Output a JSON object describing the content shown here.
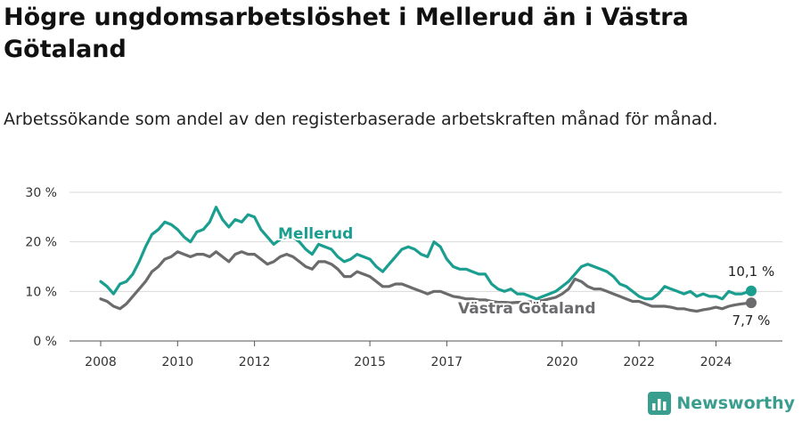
{
  "title": "Högre ungdomsarbetslöshet i Mellerud än i Västra Götaland",
  "subtitle": "Arbetssökande som andel av den registerbaserade arbetskraften månad för månad.",
  "brand": {
    "name": "Newsworthy",
    "color": "#3a9e8f"
  },
  "chart_data": {
    "type": "line",
    "x_range": [
      "2008-01",
      "2024-12"
    ],
    "ylim": [
      0,
      30
    ],
    "yticks": [
      "0 %",
      "10 %",
      "20 %",
      "30 %"
    ],
    "xticks": [
      "2008",
      "2010",
      "2012",
      "2015",
      "2017",
      "2020",
      "2022",
      "2024"
    ],
    "grid": true,
    "series": [
      {
        "name": "Mellerud",
        "color": "#1a9e8f",
        "end_label": "10,1 %",
        "points": [
          [
            "2008-01",
            12
          ],
          [
            "2008-03",
            11
          ],
          [
            "2008-05",
            9.5
          ],
          [
            "2008-07",
            11.5
          ],
          [
            "2008-09",
            12
          ],
          [
            "2008-11",
            13.5
          ],
          [
            "2009-01",
            16
          ],
          [
            "2009-03",
            19
          ],
          [
            "2009-05",
            21.5
          ],
          [
            "2009-07",
            22.5
          ],
          [
            "2009-09",
            24
          ],
          [
            "2009-11",
            23.5
          ],
          [
            "2010-01",
            22.5
          ],
          [
            "2010-03",
            21
          ],
          [
            "2010-05",
            20
          ],
          [
            "2010-07",
            22
          ],
          [
            "2010-09",
            22.5
          ],
          [
            "2010-11",
            24
          ],
          [
            "2011-01",
            27
          ],
          [
            "2011-03",
            24.5
          ],
          [
            "2011-05",
            23
          ],
          [
            "2011-07",
            24.5
          ],
          [
            "2011-09",
            24
          ],
          [
            "2011-11",
            25.5
          ],
          [
            "2012-01",
            25
          ],
          [
            "2012-03",
            22.5
          ],
          [
            "2012-05",
            21
          ],
          [
            "2012-07",
            19.5
          ],
          [
            "2012-09",
            20.5
          ],
          [
            "2012-11",
            21
          ],
          [
            "2013-01",
            21
          ],
          [
            "2013-03",
            20
          ],
          [
            "2013-05",
            18.5
          ],
          [
            "2013-07",
            17.5
          ],
          [
            "2013-09",
            19.5
          ],
          [
            "2013-11",
            19
          ],
          [
            "2014-01",
            18.5
          ],
          [
            "2014-03",
            17
          ],
          [
            "2014-05",
            16
          ],
          [
            "2014-07",
            16.5
          ],
          [
            "2014-09",
            17.5
          ],
          [
            "2014-11",
            17
          ],
          [
            "2015-01",
            16.5
          ],
          [
            "2015-03",
            15
          ],
          [
            "2015-05",
            14
          ],
          [
            "2015-07",
            15.5
          ],
          [
            "2015-09",
            17
          ],
          [
            "2015-11",
            18.5
          ],
          [
            "2016-01",
            19
          ],
          [
            "2016-03",
            18.5
          ],
          [
            "2016-05",
            17.5
          ],
          [
            "2016-07",
            17
          ],
          [
            "2016-09",
            20
          ],
          [
            "2016-11",
            19
          ],
          [
            "2017-01",
            16.5
          ],
          [
            "2017-03",
            15
          ],
          [
            "2017-05",
            14.5
          ],
          [
            "2017-07",
            14.5
          ],
          [
            "2017-09",
            14
          ],
          [
            "2017-11",
            13.5
          ],
          [
            "2018-01",
            13.5
          ],
          [
            "2018-03",
            11.5
          ],
          [
            "2018-05",
            10.5
          ],
          [
            "2018-07",
            10
          ],
          [
            "2018-09",
            10.5
          ],
          [
            "2018-11",
            9.5
          ],
          [
            "2019-01",
            9.5
          ],
          [
            "2019-03",
            9
          ],
          [
            "2019-05",
            8.5
          ],
          [
            "2019-07",
            9
          ],
          [
            "2019-09",
            9.5
          ],
          [
            "2019-11",
            10
          ],
          [
            "2020-01",
            11
          ],
          [
            "2020-03",
            12
          ],
          [
            "2020-05",
            13.5
          ],
          [
            "2020-07",
            15
          ],
          [
            "2020-09",
            15.5
          ],
          [
            "2020-11",
            15
          ],
          [
            "2021-01",
            14.5
          ],
          [
            "2021-03",
            14
          ],
          [
            "2021-05",
            13
          ],
          [
            "2021-07",
            11.5
          ],
          [
            "2021-09",
            11
          ],
          [
            "2021-11",
            10
          ],
          [
            "2022-01",
            9
          ],
          [
            "2022-03",
            8.5
          ],
          [
            "2022-05",
            8.5
          ],
          [
            "2022-07",
            9.5
          ],
          [
            "2022-09",
            11
          ],
          [
            "2022-11",
            10.5
          ],
          [
            "2023-01",
            10
          ],
          [
            "2023-03",
            9.5
          ],
          [
            "2023-05",
            10
          ],
          [
            "2023-07",
            9
          ],
          [
            "2023-09",
            9.5
          ],
          [
            "2023-11",
            9
          ],
          [
            "2024-01",
            9
          ],
          [
            "2024-03",
            8.5
          ],
          [
            "2024-05",
            10
          ],
          [
            "2024-07",
            9.5
          ],
          [
            "2024-09",
            9.5
          ],
          [
            "2024-12",
            10.1
          ]
        ]
      },
      {
        "name": "Västra Götaland",
        "color": "#6b6b6d",
        "end_label": "7,7 %",
        "points": [
          [
            "2008-01",
            8.5
          ],
          [
            "2008-03",
            8
          ],
          [
            "2008-05",
            7
          ],
          [
            "2008-07",
            6.5
          ],
          [
            "2008-09",
            7.5
          ],
          [
            "2008-11",
            9
          ],
          [
            "2009-01",
            10.5
          ],
          [
            "2009-03",
            12
          ],
          [
            "2009-05",
            14
          ],
          [
            "2009-07",
            15
          ],
          [
            "2009-09",
            16.5
          ],
          [
            "2009-11",
            17
          ],
          [
            "2010-01",
            18
          ],
          [
            "2010-03",
            17.5
          ],
          [
            "2010-05",
            17
          ],
          [
            "2010-07",
            17.5
          ],
          [
            "2010-09",
            17.5
          ],
          [
            "2010-11",
            17
          ],
          [
            "2011-01",
            18
          ],
          [
            "2011-03",
            17
          ],
          [
            "2011-05",
            16
          ],
          [
            "2011-07",
            17.5
          ],
          [
            "2011-09",
            18
          ],
          [
            "2011-11",
            17.5
          ],
          [
            "2012-01",
            17.5
          ],
          [
            "2012-03",
            16.5
          ],
          [
            "2012-05",
            15.5
          ],
          [
            "2012-07",
            16
          ],
          [
            "2012-09",
            17
          ],
          [
            "2012-11",
            17.5
          ],
          [
            "2013-01",
            17
          ],
          [
            "2013-03",
            16
          ],
          [
            "2013-05",
            15
          ],
          [
            "2013-07",
            14.5
          ],
          [
            "2013-09",
            16
          ],
          [
            "2013-11",
            16
          ],
          [
            "2014-01",
            15.5
          ],
          [
            "2014-03",
            14.5
          ],
          [
            "2014-05",
            13
          ],
          [
            "2014-07",
            13
          ],
          [
            "2014-09",
            14
          ],
          [
            "2014-11",
            13.5
          ],
          [
            "2015-01",
            13
          ],
          [
            "2015-03",
            12
          ],
          [
            "2015-05",
            11
          ],
          [
            "2015-07",
            11
          ],
          [
            "2015-09",
            11.5
          ],
          [
            "2015-11",
            11.5
          ],
          [
            "2016-01",
            11
          ],
          [
            "2016-03",
            10.5
          ],
          [
            "2016-05",
            10
          ],
          [
            "2016-07",
            9.5
          ],
          [
            "2016-09",
            10
          ],
          [
            "2016-11",
            10
          ],
          [
            "2017-01",
            9.5
          ],
          [
            "2017-03",
            9
          ],
          [
            "2017-05",
            8.8
          ],
          [
            "2017-07",
            8.5
          ],
          [
            "2017-09",
            8.5
          ],
          [
            "2017-11",
            8.3
          ],
          [
            "2018-01",
            8.3
          ],
          [
            "2018-03",
            8
          ],
          [
            "2018-05",
            7.8
          ],
          [
            "2018-07",
            7.8
          ],
          [
            "2018-09",
            7.7
          ],
          [
            "2018-11",
            7.8
          ],
          [
            "2019-01",
            7.8
          ],
          [
            "2019-03",
            7.9
          ],
          [
            "2019-05",
            8
          ],
          [
            "2019-07",
            8.2
          ],
          [
            "2019-09",
            8.5
          ],
          [
            "2019-11",
            8.8
          ],
          [
            "2020-01",
            9.5
          ],
          [
            "2020-03",
            10.5
          ],
          [
            "2020-05",
            12.5
          ],
          [
            "2020-07",
            12
          ],
          [
            "2020-09",
            11
          ],
          [
            "2020-11",
            10.5
          ],
          [
            "2021-01",
            10.5
          ],
          [
            "2021-03",
            10
          ],
          [
            "2021-05",
            9.5
          ],
          [
            "2021-07",
            9
          ],
          [
            "2021-09",
            8.5
          ],
          [
            "2021-11",
            8
          ],
          [
            "2022-01",
            8
          ],
          [
            "2022-03",
            7.5
          ],
          [
            "2022-05",
            7
          ],
          [
            "2022-07",
            7
          ],
          [
            "2022-09",
            7
          ],
          [
            "2022-11",
            6.8
          ],
          [
            "2023-01",
            6.5
          ],
          [
            "2023-03",
            6.5
          ],
          [
            "2023-05",
            6.2
          ],
          [
            "2023-07",
            6
          ],
          [
            "2023-09",
            6.3
          ],
          [
            "2023-11",
            6.5
          ],
          [
            "2024-01",
            6.8
          ],
          [
            "2024-03",
            6.5
          ],
          [
            "2024-05",
            7
          ],
          [
            "2024-07",
            7.3
          ],
          [
            "2024-09",
            7.5
          ],
          [
            "2024-12",
            7.7
          ]
        ]
      }
    ]
  }
}
